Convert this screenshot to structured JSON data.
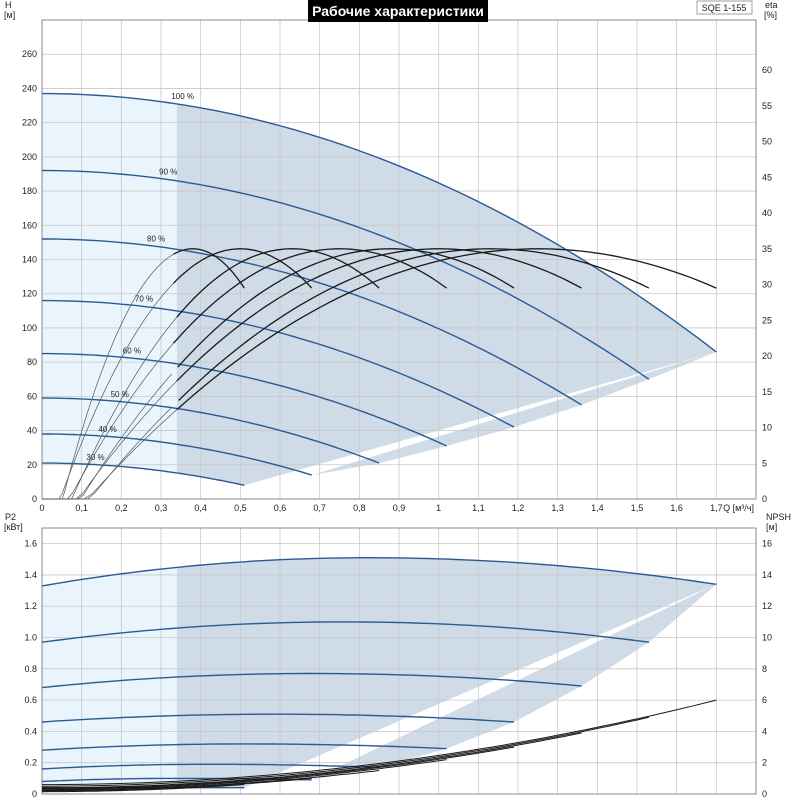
{
  "title": "Рабочие характеристики",
  "model": "SQE 1-155",
  "colors": {
    "pump_curve": "#2a5a96",
    "eta_curve": "#1a1a1a",
    "npsh_curve": "#1a1a1a",
    "region_light": "#eaf4fc",
    "region_dark": "#cfdbe6",
    "grid": "#c8c8c8"
  },
  "chart_data": [
    {
      "type": "line",
      "name": "head",
      "y_label": "H",
      "y_unit": "[м]",
      "y2_label": "eta",
      "y2_unit": "[%]",
      "x_label": "Q [м³/ч]",
      "xlim": [
        0,
        1.8
      ],
      "ylim": [
        0,
        280
      ],
      "y2lim": [
        0,
        67
      ],
      "x_ticks": [
        "0",
        "0,1",
        "0,2",
        "0,3",
        "0,4",
        "0,5",
        "0,6",
        "0,7",
        "0,8",
        "0,9",
        "1",
        "1,1",
        "1,2",
        "1,3",
        "1,4",
        "1,5",
        "1,6",
        "1,7"
      ],
      "y_ticks": [
        "0",
        "20",
        "40",
        "60",
        "80",
        "100",
        "120",
        "140",
        "160",
        "180",
        "200",
        "220",
        "240",
        "260"
      ],
      "y2_ticks": [
        "0",
        "5",
        "10",
        "15",
        "20",
        "25",
        "30",
        "35",
        "40",
        "45",
        "50",
        "55",
        "60"
      ],
      "grid": true,
      "min_flow_Q": 0.34,
      "speed_curves": [
        {
          "label": "100 %",
          "H0": 237,
          "Q_end": 1.7,
          "H_end": 86
        },
        {
          "label": "90 %",
          "H0": 192,
          "Q_end": 1.53,
          "H_end": 70
        },
        {
          "label": "80 %",
          "H0": 152,
          "Q_end": 1.36,
          "H_end": 55
        },
        {
          "label": "70 %",
          "H0": 116,
          "Q_end": 1.19,
          "H_end": 42
        },
        {
          "label": "60 %",
          "H0": 85,
          "Q_end": 1.02,
          "H_end": 31
        },
        {
          "label": "50 %",
          "H0": 59,
          "Q_end": 0.85,
          "H_end": 21
        },
        {
          "label": "40 %",
          "H0": 38,
          "Q_end": 0.68,
          "H_end": 14
        },
        {
          "label": "30 %",
          "H0": 21,
          "Q_end": 0.51,
          "H_end": 8
        }
      ],
      "eta_curves": [
        {
          "Q_peak": 1.25,
          "eta_peak": 35,
          "Q_end": 1.7,
          "eta_end": 29.5
        },
        {
          "Q_peak": 1.13,
          "eta_peak": 35,
          "Q_end": 1.53,
          "eta_end": 29.5
        },
        {
          "Q_peak": 1.0,
          "eta_peak": 35,
          "Q_end": 1.36,
          "eta_end": 29.5
        },
        {
          "Q_peak": 0.88,
          "eta_peak": 35,
          "Q_end": 1.19,
          "eta_end": 29.5
        },
        {
          "Q_peak": 0.75,
          "eta_peak": 35,
          "Q_end": 1.02,
          "eta_end": 29.5
        },
        {
          "Q_peak": 0.63,
          "eta_peak": 35,
          "Q_end": 0.85,
          "eta_end": 29.5
        },
        {
          "Q_peak": 0.5,
          "eta_peak": 35,
          "Q_end": 0.68,
          "eta_end": 29.5
        },
        {
          "Q_peak": 0.38,
          "eta_peak": 35,
          "Q_end": 0.51,
          "eta_end": 29.5
        }
      ]
    },
    {
      "type": "line",
      "name": "power",
      "y_label": "P2",
      "y_unit": "[кВт]",
      "y2_label": "NPSH",
      "y2_unit": "[м]",
      "xlim": [
        0,
        1.8
      ],
      "ylim": [
        0,
        1.7
      ],
      "y2lim": [
        0,
        17
      ],
      "y_ticks": [
        "0",
        "0.2",
        "0.4",
        "0.6",
        "0.8",
        "1.0",
        "1.2",
        "1.4",
        "1.6"
      ],
      "y2_ticks": [
        "0",
        "2",
        "4",
        "6",
        "8",
        "10",
        "12",
        "14",
        "16"
      ],
      "grid": true,
      "power_curves": [
        {
          "P0": 1.33,
          "Q_peak": 0.82,
          "P_peak": 1.51,
          "Q_end": 1.7,
          "P_end": 1.34
        },
        {
          "P0": 0.97,
          "Q_peak": 0.76,
          "P_peak": 1.1,
          "Q_end": 1.53,
          "P_end": 0.97
        },
        {
          "P0": 0.68,
          "Q_peak": 0.68,
          "P_peak": 0.77,
          "Q_end": 1.36,
          "P_end": 0.69
        },
        {
          "P0": 0.46,
          "Q_peak": 0.59,
          "P_peak": 0.51,
          "Q_end": 1.19,
          "P_end": 0.46
        },
        {
          "P0": 0.28,
          "Q_peak": 0.51,
          "P_peak": 0.32,
          "Q_end": 1.02,
          "P_end": 0.29
        },
        {
          "P0": 0.16,
          "Q_peak": 0.42,
          "P_peak": 0.19,
          "Q_end": 0.85,
          "P_end": 0.17
        },
        {
          "P0": 0.08,
          "Q_peak": 0.34,
          "P_peak": 0.1,
          "Q_end": 0.68,
          "P_end": 0.09
        },
        {
          "P0": 0.04,
          "Q_peak": 0.25,
          "P_peak": 0.04,
          "Q_end": 0.51,
          "P_end": 0.04
        }
      ],
      "npsh_curves": [
        {
          "NPSH0": 0.6,
          "Q_end": 1.7,
          "NPSH_end": 6.0
        },
        {
          "NPSH0": 0.5,
          "Q_end": 1.53,
          "NPSH_end": 4.9
        },
        {
          "NPSH0": 0.4,
          "Q_end": 1.36,
          "NPSH_end": 3.9
        },
        {
          "NPSH0": 0.35,
          "Q_end": 1.19,
          "NPSH_end": 3.0
        },
        {
          "NPSH0": 0.3,
          "Q_end": 1.02,
          "NPSH_end": 2.2
        },
        {
          "NPSH0": 0.25,
          "Q_end": 0.85,
          "NPSH_end": 1.5
        },
        {
          "NPSH0": 0.2,
          "Q_end": 0.68,
          "NPSH_end": 1.0
        },
        {
          "NPSH0": 0.15,
          "Q_end": 0.51,
          "NPSH_end": 0.6
        }
      ]
    }
  ]
}
